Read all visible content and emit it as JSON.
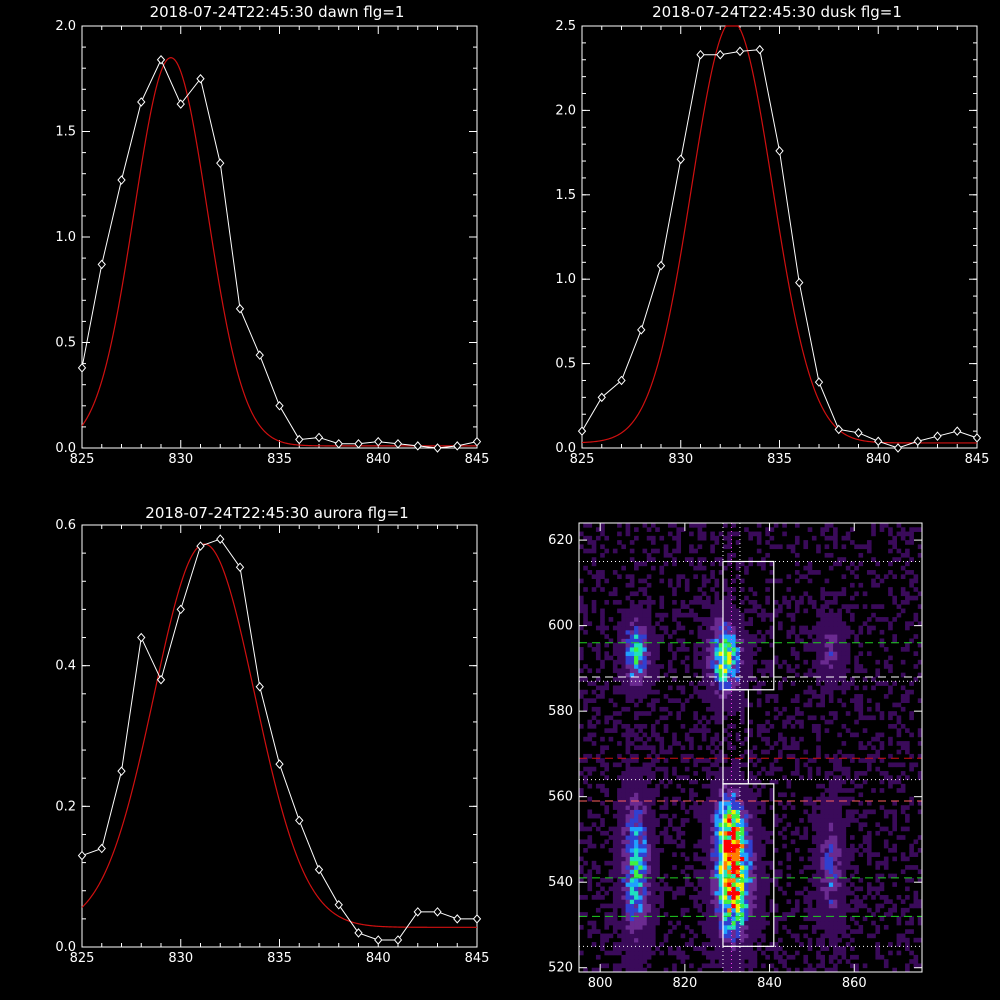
{
  "chart_data": [
    {
      "type": "line",
      "title": "2018-07-24T22:45:30 dawn flg=1",
      "xlim": [
        825,
        845
      ],
      "ylim": [
        0,
        2.0
      ],
      "xticks": [
        825,
        830,
        835,
        840,
        845
      ],
      "xtick_labels": [
        "825",
        "830",
        "835",
        "840",
        "845"
      ],
      "yticks": [
        0,
        0.5,
        1.0,
        1.5,
        2.0
      ],
      "ytick_labels": [
        "0.0",
        "0.5",
        "1.0",
        "1.5",
        "2.0"
      ],
      "series": [
        {
          "kind": "data",
          "color": "#ffffff",
          "marker": "diamond",
          "x": [
            825,
            826,
            827,
            828,
            829,
            830,
            831,
            832,
            833,
            834,
            835,
            836,
            837,
            838,
            839,
            840,
            841,
            842,
            843,
            844,
            845
          ],
          "y": [
            0.38,
            0.87,
            1.27,
            1.64,
            1.84,
            1.63,
            1.75,
            1.35,
            0.66,
            0.44,
            0.2,
            0.04,
            0.05,
            0.02,
            0.02,
            0.03,
            0.02,
            0.01,
            0.0,
            0.01,
            0.03
          ]
        },
        {
          "kind": "fit",
          "color": "#d01010",
          "model": "gaussian",
          "amp": 1.84,
          "center": 829.5,
          "sigma": 1.85,
          "offset": 0.01
        }
      ]
    },
    {
      "type": "line",
      "title": "2018-07-24T22:45:30 dusk flg=1",
      "xlim": [
        825,
        845
      ],
      "ylim": [
        0,
        2.5
      ],
      "xticks": [
        825,
        830,
        835,
        840,
        845
      ],
      "xtick_labels": [
        "825",
        "830",
        "835",
        "840",
        "845"
      ],
      "yticks": [
        0,
        0.5,
        1.0,
        1.5,
        2.0,
        2.5
      ],
      "ytick_labels": [
        "0.0",
        "0.5",
        "1.0",
        "1.5",
        "2.0",
        "2.5"
      ],
      "series": [
        {
          "kind": "data",
          "color": "#ffffff",
          "marker": "diamond",
          "x": [
            825,
            826,
            827,
            828,
            829,
            830,
            831,
            832,
            833,
            834,
            835,
            836,
            837,
            838,
            839,
            840,
            841,
            842,
            843,
            844,
            845
          ],
          "y": [
            0.1,
            0.3,
            0.4,
            0.7,
            1.08,
            1.71,
            2.33,
            2.33,
            2.35,
            2.36,
            1.76,
            0.98,
            0.39,
            0.11,
            0.09,
            0.04,
            0.0,
            0.04,
            0.07,
            0.1,
            0.06
          ]
        },
        {
          "kind": "fit",
          "color": "#d01010",
          "model": "gaussian",
          "amp": 2.5,
          "center": 832.6,
          "sigma": 2.05,
          "offset": 0.03
        }
      ]
    },
    {
      "type": "line",
      "title": "2018-07-24T22:45:30 aurora flg=1",
      "xlim": [
        825,
        845
      ],
      "ylim": [
        0,
        0.6
      ],
      "xticks": [
        825,
        830,
        835,
        840,
        845
      ],
      "xtick_labels": [
        "825",
        "830",
        "835",
        "840",
        "845"
      ],
      "yticks": [
        0,
        0.2,
        0.4,
        0.6
      ],
      "ytick_labels": [
        "0.0",
        "0.2",
        "0.4",
        "0.6"
      ],
      "series": [
        {
          "kind": "data",
          "color": "#ffffff",
          "marker": "diamond",
          "x": [
            825,
            826,
            827,
            828,
            829,
            830,
            831,
            832,
            833,
            834,
            835,
            836,
            837,
            838,
            839,
            840,
            841,
            842,
            843,
            844,
            845
          ],
          "y": [
            0.13,
            0.14,
            0.25,
            0.44,
            0.38,
            0.48,
            0.57,
            0.58,
            0.54,
            0.37,
            0.26,
            0.18,
            0.11,
            0.06,
            0.02,
            0.01,
            0.01,
            0.05,
            0.05,
            0.04,
            0.04
          ]
        },
        {
          "kind": "fit",
          "color": "#d01010",
          "model": "gaussian",
          "amp": 0.545,
          "center": 831.2,
          "sigma": 2.55,
          "offset": 0.028
        }
      ]
    },
    {
      "type": "heatmap",
      "title": "",
      "xlim": [
        795,
        876
      ],
      "ylim": [
        519,
        624
      ],
      "xticks": [
        800,
        820,
        840,
        860
      ],
      "xtick_labels": [
        "800",
        "820",
        "840",
        "860"
      ],
      "yticks": [
        520,
        540,
        560,
        580,
        600,
        620
      ],
      "ytick_labels": [
        "520",
        "540",
        "560",
        "580",
        "600",
        "620"
      ],
      "colormap": [
        "#000000",
        "#3a0a5a",
        "#6a2a90",
        "#3040d0",
        "#20a0ff",
        "#20e0c0",
        "#40f040",
        "#f0f000",
        "#ff8000",
        "#ff0000"
      ],
      "cell_size": 1,
      "emission_spots": [
        {
          "x": 808,
          "y": 593,
          "sx": 2.0,
          "sy": 5.0,
          "amp": 0.55
        },
        {
          "x": 808,
          "y": 543,
          "sx": 2.2,
          "sy": 11.0,
          "amp": 0.55
        },
        {
          "x": 829,
          "y": 592,
          "sx": 2.5,
          "sy": 5.5,
          "amp": 0.7
        },
        {
          "x": 831,
          "y": 540,
          "sx": 2.8,
          "sy": 8.5,
          "amp": 1.0
        },
        {
          "x": 830,
          "y": 553,
          "sx": 2.5,
          "sy": 6.0,
          "amp": 0.55
        },
        {
          "x": 854,
          "y": 594,
          "sx": 2.0,
          "sy": 4.5,
          "amp": 0.28
        },
        {
          "x": 854,
          "y": 543,
          "sx": 2.0,
          "sy": 9.0,
          "amp": 0.32
        }
      ],
      "boxes": [
        {
          "x0": 829,
          "x1": 841,
          "y0": 585,
          "y1": 615
        },
        {
          "x0": 829,
          "x1": 835,
          "y0": 563,
          "y1": 585
        },
        {
          "x0": 829,
          "x1": 841,
          "y0": 525,
          "y1": 563
        }
      ],
      "hlines": [
        {
          "y": 615,
          "color": "#ffffff",
          "style": "dotted"
        },
        {
          "y": 596,
          "color": "#20d020",
          "style": "dashed"
        },
        {
          "y": 588,
          "color": "#ffffff",
          "style": "dashed"
        },
        {
          "y": 587,
          "color": "#ffffff",
          "style": "dotted"
        },
        {
          "y": 569,
          "color": "#d01010",
          "style": "dashed"
        },
        {
          "y": 564,
          "color": "#ffffff",
          "style": "dotted"
        },
        {
          "y": 559,
          "color": "#ff6060",
          "style": "dashed"
        },
        {
          "y": 541,
          "color": "#20d020",
          "style": "dashed"
        },
        {
          "y": 532,
          "color": "#20d020",
          "style": "dashed"
        },
        {
          "y": 525,
          "color": "#ffffff",
          "style": "dotted"
        }
      ],
      "vlines": [
        {
          "x": 829,
          "color": "#ffffff",
          "style": "dotted"
        },
        {
          "x": 831,
          "color": "#ff40ff",
          "style": "dotted"
        },
        {
          "x": 833,
          "color": "#ffffff",
          "style": "dotted"
        }
      ]
    }
  ]
}
